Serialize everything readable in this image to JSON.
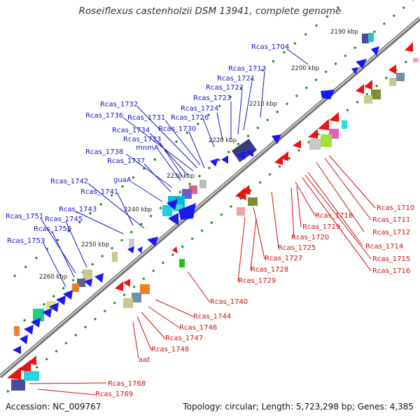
{
  "title": "Roseiflexus castenholzii DSM 13941, complete genome",
  "footer": {
    "accession": "Accession: NC_009767",
    "summary": "Topology: circular; Length: 5,723,298 bp; Genes: 4,385"
  },
  "kbp_marks": [
    "2190 kbp",
    "2200 kbp",
    "2210 kbp",
    "2220 kbp",
    "2230 kbp",
    "2240 kbp",
    "2250 kbp",
    "2260 kbp"
  ],
  "labels_top": [
    "Rcas_1704",
    "Rcas_1713",
    "Rcas_1721",
    "Rcas_1722",
    "Rcas_1723",
    "Rcas_1724",
    "Rcas_1726",
    "Rcas_1730",
    "Rcas_1731",
    "Rcas_1732",
    "Rcas_1736",
    "Rcas_1734",
    "Rcas_1733",
    "mnmA",
    "Rcas_1738",
    "Rcas_1737",
    "guaA",
    "Rcas_1742",
    "Rcas_1741",
    "Rcas_1743",
    "Rcas_1751",
    "Rcas_1745",
    "Rcas_1750",
    "Rcas_1753"
  ],
  "labels_bottom": [
    "Rcas_1710",
    "Rcas_1711",
    "Rcas_1712",
    "Rcas_1714",
    "Rcas_1715",
    "Rcas_1716",
    "Rcas_1718",
    "Rcas_1719",
    "Rcas_1720",
    "Rcas_1725",
    "Rcas_1727",
    "Rcas_1728",
    "Rcas_1729",
    "Rcas_1740",
    "Rcas_1744",
    "Rcas_1746",
    "Rcas_1747",
    "Rcas_1748",
    "aat",
    "Rcas_1768",
    "Rcas_1769"
  ],
  "colors": {
    "forward_strand": "#1a1af0",
    "reverse_strand": "#ee1111",
    "backbone": "#888888",
    "link_blue": "#1414c8",
    "link_red": "#cc1010",
    "dots": "#1e8c1e"
  }
}
